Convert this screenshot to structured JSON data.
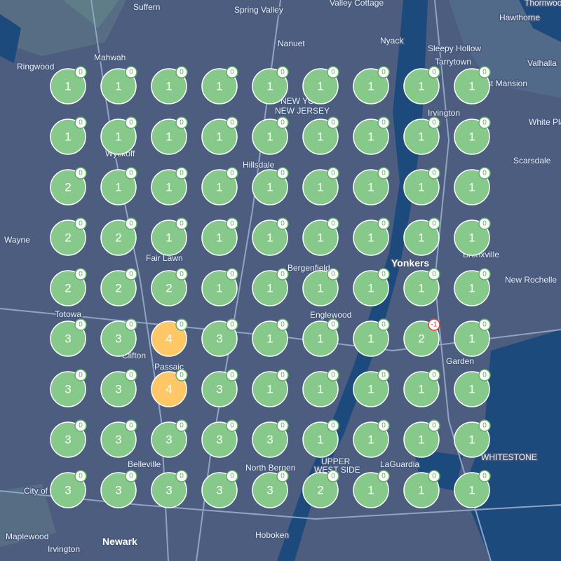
{
  "places": [
    "Suffern",
    "Spring Valley",
    "Valley Cottage",
    "Thornwood",
    "Hawthorne",
    "Mahwah",
    "Nanuet",
    "Nyack",
    "Sleepy Hollow",
    "Tarrytown",
    "Valhalla",
    "Ringwood",
    "rst Mansion",
    "NEW YORK",
    "NEW JERSEY",
    "Irvington",
    "White Pla",
    "Wyckoff",
    "Scarsdale",
    "Hillsdale",
    "Wayne",
    "Fair Lawn",
    "Bergenfield",
    "Yonkers",
    "Bronxville",
    "New Rochelle",
    "Totowa",
    "Englewood",
    "Clifton",
    "Passaic",
    "Garden",
    "Belleville",
    "North Bergen",
    "LaGuardia",
    "WHITESTONE",
    "UPPER",
    "WEST SIDE",
    "City of",
    "Maplewood",
    "Newark",
    "Irvington",
    "Hoboken"
  ],
  "clusters": [
    [
      {
        "count": 1,
        "badge": 0
      },
      {
        "count": 1,
        "badge": 0
      },
      {
        "count": 1,
        "badge": 0
      },
      {
        "count": 1,
        "badge": 0
      },
      {
        "count": 1,
        "badge": 0
      },
      {
        "count": 1,
        "badge": 0
      },
      {
        "count": 1,
        "badge": 0
      },
      {
        "count": 1,
        "badge": 0
      },
      {
        "count": 1,
        "badge": 0
      }
    ],
    [
      {
        "count": 1,
        "badge": 0
      },
      {
        "count": 1,
        "badge": 0
      },
      {
        "count": 1,
        "badge": 0
      },
      {
        "count": 1,
        "badge": 0
      },
      {
        "count": 1,
        "badge": 0
      },
      {
        "count": 1,
        "badge": 0
      },
      {
        "count": 1,
        "badge": 0
      },
      {
        "count": 1,
        "badge": 0
      },
      {
        "count": 1,
        "badge": 0
      }
    ],
    [
      {
        "count": 2,
        "badge": 0
      },
      {
        "count": 1,
        "badge": 0
      },
      {
        "count": 1,
        "badge": 0
      },
      {
        "count": 1,
        "badge": 0
      },
      {
        "count": 1,
        "badge": 0
      },
      {
        "count": 1,
        "badge": 0
      },
      {
        "count": 1,
        "badge": 0
      },
      {
        "count": 1,
        "badge": 0
      },
      {
        "count": 1,
        "badge": 0
      }
    ],
    [
      {
        "count": 2,
        "badge": 0
      },
      {
        "count": 2,
        "badge": 0
      },
      {
        "count": 1,
        "badge": 0
      },
      {
        "count": 1,
        "badge": 0
      },
      {
        "count": 1,
        "badge": 0
      },
      {
        "count": 1,
        "badge": 0
      },
      {
        "count": 1,
        "badge": 0
      },
      {
        "count": 1,
        "badge": 0
      },
      {
        "count": 1,
        "badge": 0
      }
    ],
    [
      {
        "count": 2,
        "badge": 0
      },
      {
        "count": 2,
        "badge": 0
      },
      {
        "count": 2,
        "badge": 0
      },
      {
        "count": 1,
        "badge": 0
      },
      {
        "count": 1,
        "badge": 0
      },
      {
        "count": 1,
        "badge": 0
      },
      {
        "count": 1,
        "badge": 0
      },
      {
        "count": 1,
        "badge": 0
      },
      {
        "count": 1,
        "badge": 0
      }
    ],
    [
      {
        "count": 3,
        "badge": 0
      },
      {
        "count": 3,
        "badge": 0
      },
      {
        "count": 4,
        "badge": 0
      },
      {
        "count": 3,
        "badge": 0
      },
      {
        "count": 1,
        "badge": 0
      },
      {
        "count": 1,
        "badge": 0
      },
      {
        "count": 1,
        "badge": 0
      },
      {
        "count": 2,
        "badge": -1
      },
      {
        "count": 1,
        "badge": 0
      }
    ],
    [
      {
        "count": 3,
        "badge": 0
      },
      {
        "count": 3,
        "badge": 0
      },
      {
        "count": 4,
        "badge": 0
      },
      {
        "count": 3,
        "badge": 0
      },
      {
        "count": 1,
        "badge": 0
      },
      {
        "count": 1,
        "badge": 0
      },
      {
        "count": 1,
        "badge": 0
      },
      {
        "count": 1,
        "badge": 0
      },
      {
        "count": 1,
        "badge": 0
      }
    ],
    [
      {
        "count": 3,
        "badge": 0
      },
      {
        "count": 3,
        "badge": 0
      },
      {
        "count": 3,
        "badge": 0
      },
      {
        "count": 3,
        "badge": 0
      },
      {
        "count": 3,
        "badge": 0
      },
      {
        "count": 1,
        "badge": 0
      },
      {
        "count": 1,
        "badge": 0
      },
      {
        "count": 1,
        "badge": 0
      },
      {
        "count": 1,
        "badge": 0
      }
    ],
    [
      {
        "count": 3,
        "badge": 0
      },
      {
        "count": 3,
        "badge": 0
      },
      {
        "count": 3,
        "badge": 0
      },
      {
        "count": 3,
        "badge": 0
      },
      {
        "count": 3,
        "badge": 0
      },
      {
        "count": 2,
        "badge": 0
      },
      {
        "count": 1,
        "badge": 0
      },
      {
        "count": 1,
        "badge": 0
      },
      {
        "count": 1,
        "badge": 0
      }
    ]
  ]
}
